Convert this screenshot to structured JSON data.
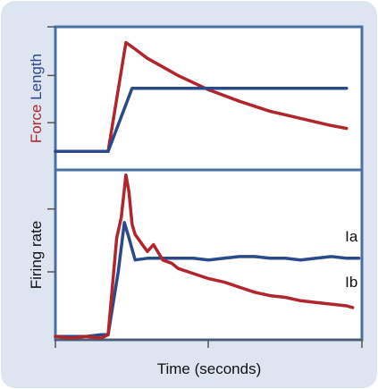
{
  "chart_data": [
    {
      "type": "line",
      "panel": "top",
      "ylabel_parts": [
        {
          "text": "Force",
          "color": "#b0262c"
        },
        {
          "text": " Length",
          "color": "#2b4a8c"
        }
      ],
      "xlim": [
        0,
        10
      ],
      "ylim": [
        0,
        1
      ],
      "yticks": [
        0.33,
        0.66,
        1.0
      ],
      "series": [
        {
          "name": "Force",
          "color": "#b0262c",
          "x": [
            0,
            1.72,
            2.3,
            2.5,
            3,
            3.5,
            4,
            5,
            6,
            7,
            8,
            9,
            9.5
          ],
          "y": [
            0.13,
            0.13,
            0.89,
            0.86,
            0.78,
            0.72,
            0.66,
            0.56,
            0.48,
            0.41,
            0.36,
            0.31,
            0.29
          ]
        },
        {
          "name": "Length",
          "color": "#2b4a8c",
          "x": [
            0,
            1.72,
            2.5,
            9.5
          ],
          "y": [
            0.13,
            0.13,
            0.57,
            0.57
          ]
        }
      ]
    },
    {
      "type": "line",
      "panel": "bottom",
      "ylabel": "Firing rate",
      "xlabel": "Time (seconds)",
      "xlim": [
        0,
        10
      ],
      "ylim": [
        0,
        1
      ],
      "yticks": [
        0.4,
        0.77
      ],
      "series": [
        {
          "name": "Ia",
          "color": "#2b4a8c",
          "x": [
            0,
            0.5,
            1.0,
            1.5,
            1.72,
            2.05,
            2.25,
            2.4,
            2.6,
            3.0,
            3.5,
            4.0,
            4.5,
            5.0,
            5.5,
            6.0,
            6.5,
            7.0,
            7.5,
            8.0,
            8.5,
            9.0,
            9.5,
            9.9
          ],
          "y": [
            0.02,
            0.02,
            0.02,
            0.03,
            0.03,
            0.4,
            0.69,
            0.6,
            0.47,
            0.48,
            0.48,
            0.48,
            0.48,
            0.47,
            0.48,
            0.49,
            0.49,
            0.48,
            0.48,
            0.47,
            0.48,
            0.49,
            0.48,
            0.48
          ]
        },
        {
          "name": "Ib",
          "color": "#b0262c",
          "x": [
            0,
            0.5,
            1.0,
            1.5,
            1.72,
            2.0,
            2.15,
            2.3,
            2.4,
            2.5,
            2.6,
            2.8,
            3.0,
            3.2,
            3.5,
            3.8,
            4.0,
            4.5,
            5.0,
            5.5,
            6.0,
            6.5,
            7.0,
            7.5,
            8.0,
            8.5,
            9.0,
            9.5,
            9.7
          ],
          "y": [
            0.02,
            0.01,
            0.02,
            0.01,
            0.03,
            0.6,
            0.72,
            0.97,
            0.87,
            0.68,
            0.62,
            0.57,
            0.52,
            0.56,
            0.47,
            0.45,
            0.42,
            0.39,
            0.36,
            0.34,
            0.31,
            0.28,
            0.26,
            0.25,
            0.23,
            0.22,
            0.21,
            0.2,
            0.19
          ]
        }
      ],
      "annotations": [
        {
          "text": "Ia",
          "x": 9.45,
          "y": 0.58
        },
        {
          "text": "Ib",
          "x": 9.45,
          "y": 0.31
        }
      ]
    }
  ]
}
